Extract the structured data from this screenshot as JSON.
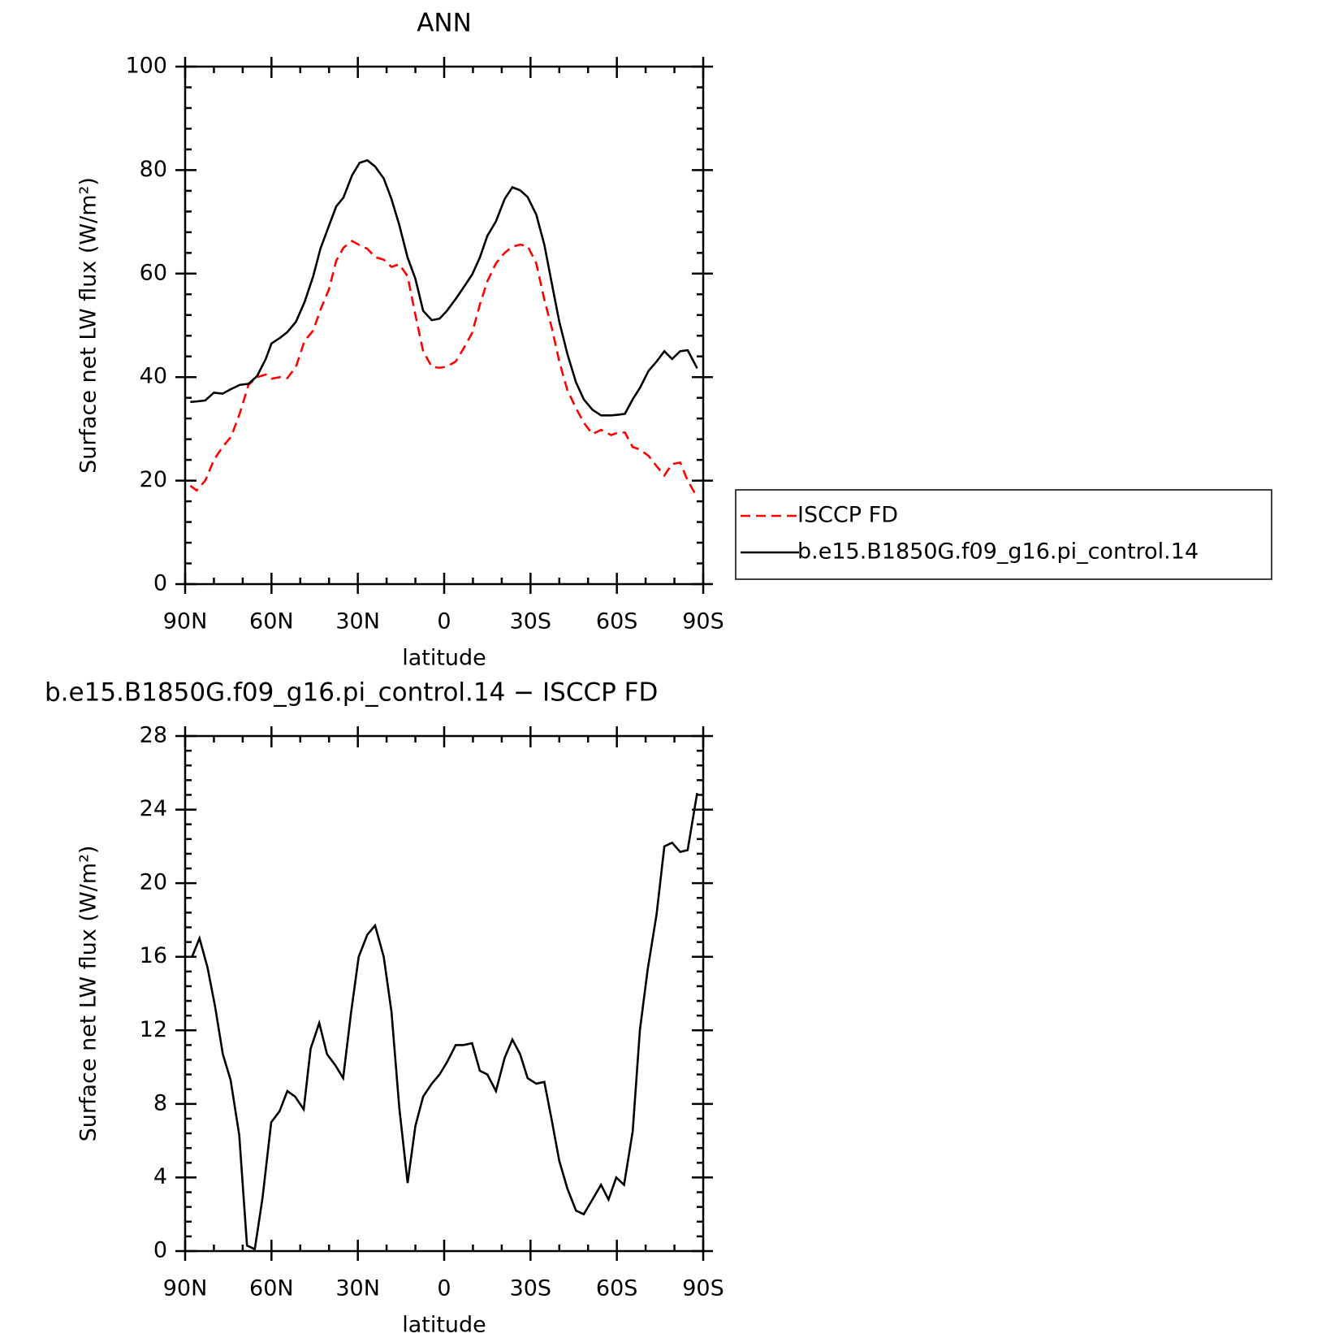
{
  "chart_data": [
    {
      "type": "line",
      "title": "ANN",
      "xlabel": "latitude",
      "ylabel": "Surface net LW flux (W/m²)",
      "x": [
        88.2,
        86,
        83,
        80,
        77,
        74,
        71,
        68,
        65,
        62,
        60,
        57,
        54.5,
        51.5,
        48.5,
        45.5,
        43,
        40,
        37.5,
        35,
        32,
        29.4,
        26.7,
        24,
        21,
        18.3,
        15.6,
        12.7,
        10,
        7.3,
        4.3,
        1.6,
        -0.8,
        -4,
        -6.7,
        -9.7,
        -12.4,
        -15,
        -18,
        -21,
        -23.7,
        -26.4,
        -29,
        -32,
        -34.8,
        -37.4,
        -40,
        -42.8,
        -45.8,
        -48.5,
        -51.5,
        -54.5,
        -58,
        -60,
        -62.8,
        -65.5,
        -68,
        -71,
        -73.8,
        -76.5,
        -79.2,
        -82,
        -84.6,
        -87.9
      ],
      "series": [
        {
          "name": "ISCCP FD",
          "color": "#ff0000",
          "linestyle": "dashed",
          "values": [
            19,
            18.1,
            20,
            24,
            26.5,
            28.5,
            33,
            38.5,
            40,
            40.5,
            39.7,
            40,
            39.8,
            42,
            47,
            49,
            53,
            57,
            62.5,
            65,
            66.3,
            65.5,
            64.8,
            63.2,
            62.7,
            61.3,
            61.8,
            59.5,
            52,
            45,
            42,
            41.8,
            42,
            43,
            45.5,
            48.5,
            54,
            58.5,
            62,
            64,
            65.2,
            65.6,
            65.3,
            62,
            55,
            49.5,
            43,
            37.5,
            34,
            31.2,
            29,
            29.8,
            28.8,
            29.2,
            29.3,
            26.5,
            26,
            24.8,
            22.8,
            21,
            23.2,
            23.5,
            20,
            16.8
          ]
        },
        {
          "name": "b.e15.B1850G.f09_g16.pi_control.14",
          "color": "#000000",
          "linestyle": "solid",
          "values": [
            35.2,
            35.3,
            35.5,
            37,
            36.8,
            37.7,
            38.5,
            38.7,
            40.2,
            43.5,
            46.5,
            47.6,
            48.7,
            50.7,
            54.5,
            59.5,
            64.8,
            69.3,
            73,
            74.7,
            79,
            81.4,
            81.9,
            80.7,
            78.4,
            74.4,
            69.4,
            63.1,
            59,
            52.8,
            51,
            51.3,
            52.7,
            55.1,
            57.3,
            59.8,
            63.1,
            67.3,
            70.1,
            74.4,
            76.7,
            76.1,
            74.8,
            71.4,
            65.6,
            58.1,
            50.7,
            44.5,
            39,
            35.7,
            33.7,
            32.6,
            32.6,
            32.7,
            32.9,
            35.7,
            37.9,
            41.2,
            43,
            45,
            43.5,
            45,
            45.2,
            41.7
          ]
        }
      ],
      "xlim": [
        90,
        -90
      ],
      "xticks": [
        {
          "value": 90,
          "label": "90N"
        },
        {
          "value": 60,
          "label": "60N"
        },
        {
          "value": 30,
          "label": "30N"
        },
        0,
        {
          "value": -30,
          "label": "30S"
        },
        {
          "value": -60,
          "label": "60S"
        },
        {
          "value": -90,
          "label": "90S"
        }
      ],
      "ylim": [
        0,
        100
      ],
      "yticks": [
        0,
        20,
        40,
        60,
        80,
        100
      ],
      "legend": "outside right"
    },
    {
      "type": "line",
      "title": "b.e15.B1850G.f09_g16.pi_control.14 − ISCCP FD",
      "xlabel": "latitude",
      "ylabel": "Surface net LW flux (W/m²)",
      "x": [
        87.6,
        85,
        82.2,
        79.6,
        76.9,
        74.2,
        71.2,
        68.5,
        65.8,
        63.1,
        60.1,
        57.2,
        54.5,
        51.8,
        48.8,
        46.4,
        43.4,
        40.7,
        37.8,
        35.1,
        32.4,
        29.7,
        26.7,
        24,
        21,
        18.3,
        15.6,
        12.7,
        10,
        7.3,
        4.3,
        1.6,
        -1.1,
        -4,
        -6.7,
        -9.7,
        -12.4,
        -15,
        -18,
        -21,
        -23.7,
        -26.4,
        -29,
        -32,
        -34.8,
        -37.4,
        -40,
        -42.8,
        -45.8,
        -48.5,
        -51.5,
        -54.5,
        -57.1,
        -59.8,
        -62.5,
        -65.5,
        -68,
        -70.7,
        -73.8,
        -76.5,
        -79.2,
        -82,
        -84.6,
        -87.9
      ],
      "series": [
        {
          "color": "#000000",
          "linestyle": "solid",
          "values": [
            16,
            17,
            15.4,
            13.3,
            10.7,
            9.3,
            6.3,
            0.3,
            0.1,
            2.9,
            7,
            7.6,
            8.7,
            8.4,
            7.7,
            11,
            12.4,
            10.7,
            10.1,
            9.4,
            12.9,
            16,
            17.2,
            17.7,
            16,
            13,
            7.8,
            3.7,
            6.8,
            8.4,
            9.1,
            9.6,
            10.3,
            11.2,
            11.2,
            11.3,
            9.8,
            9.6,
            8.7,
            10.5,
            11.5,
            10.7,
            9.4,
            9.1,
            9.2,
            7.1,
            4.9,
            3.4,
            2.2,
            2,
            2.8,
            3.6,
            2.8,
            4,
            3.6,
            6.5,
            12,
            15.3,
            18.3,
            22,
            22.2,
            21.7,
            21.8,
            24.9
          ]
        }
      ],
      "xlim": [
        90,
        -90
      ],
      "xticks": [
        {
          "value": 90,
          "label": "90N"
        },
        {
          "value": 60,
          "label": "60N"
        },
        {
          "value": 30,
          "label": "30N"
        },
        0,
        {
          "value": -30,
          "label": "30S"
        },
        {
          "value": -60,
          "label": "60S"
        },
        {
          "value": -90,
          "label": "90S"
        }
      ],
      "ylim": [
        0,
        28
      ],
      "yticks": [
        0,
        4,
        8,
        12,
        16,
        20,
        24,
        28
      ]
    }
  ]
}
